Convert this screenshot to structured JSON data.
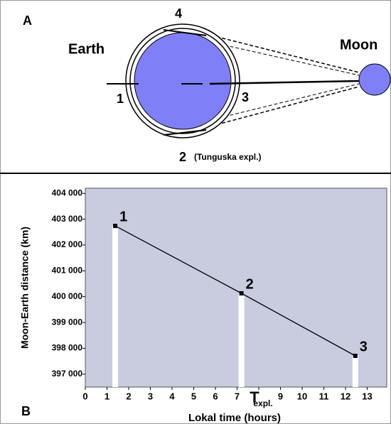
{
  "diagram": {
    "panel_label": "A",
    "earth_label": "Earth",
    "moon_label": "Moon",
    "positions": [
      "1",
      "2",
      "3",
      "4"
    ],
    "position_2_note": "(Tunguska expl.)"
  },
  "chart_data": {
    "type": "line",
    "panel_label": "B",
    "x_label": "Lokal time (hours)",
    "y_label": "Moon-Earth distance (km)",
    "x": [
      1.38,
      7.2,
      12.45
    ],
    "values": [
      402740,
      400130,
      397710
    ],
    "point_labels": [
      "1",
      "2",
      "3"
    ],
    "line_color": "#000000",
    "drop_color": "#ffffff",
    "plot_background": "#c9ccdf",
    "xlim": [
      0,
      13.9
    ],
    "ylim": [
      396500,
      404200
    ],
    "xticks": [
      0,
      1,
      2,
      3,
      4,
      5,
      6,
      7,
      {
        "value": 8,
        "label": "T"
      },
      9,
      10,
      11,
      12,
      13
    ],
    "xtick_subscript": "expl.",
    "yticks": [
      {
        "value": 397000,
        "label": "397 000"
      },
      {
        "value": 398000,
        "label": "398 000"
      },
      {
        "value": 399000,
        "label": "399 000"
      },
      {
        "value": 400000,
        "label": "400 000"
      },
      {
        "value": 401000,
        "label": "401 000"
      },
      {
        "value": 402000,
        "label": "402 000"
      },
      {
        "value": 403000,
        "label": "403 000"
      },
      {
        "value": 404000,
        "label": "404 000"
      }
    ]
  }
}
